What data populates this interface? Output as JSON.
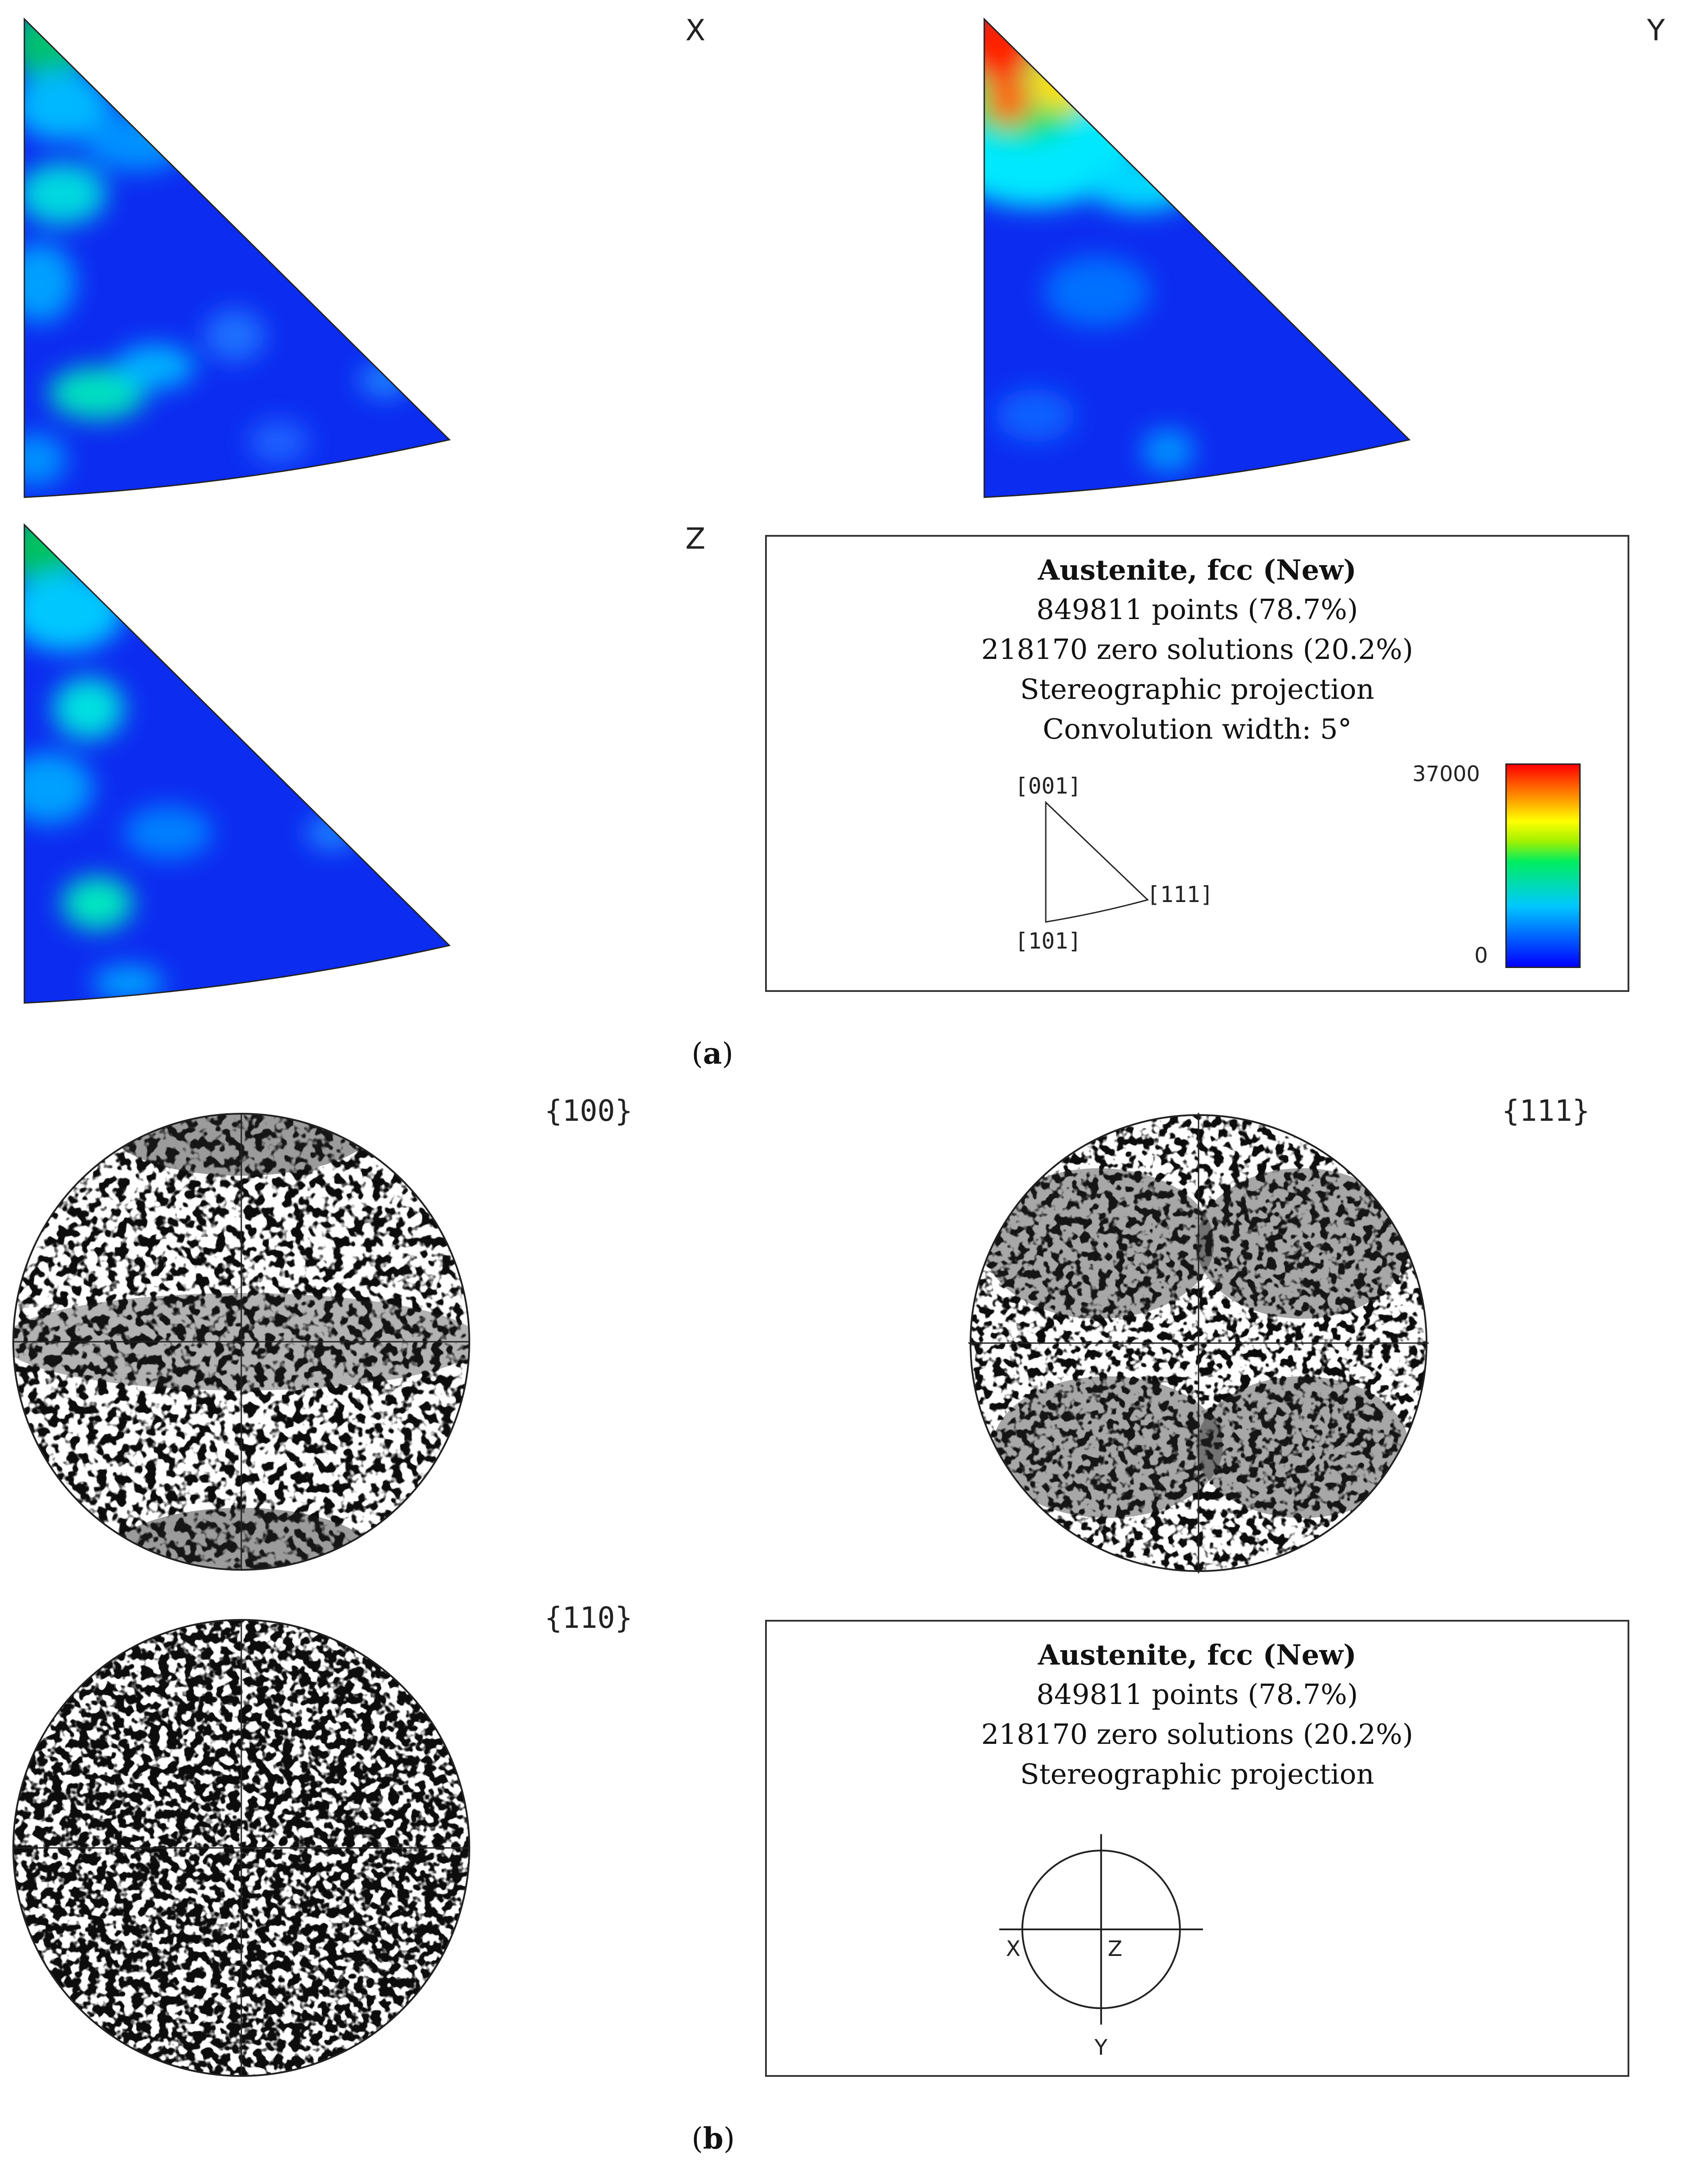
{
  "panel_a": {
    "ipf_maps": [
      {
        "label": "X"
      },
      {
        "label": "Y"
      },
      {
        "label": "Z"
      }
    ],
    "legend": {
      "title": "Austenite, fcc (New)",
      "lines": [
        "849811 points (78.7%)",
        "218170 zero solutions (20.2%)",
        "Stereographic projection",
        "Convolution width: 5°"
      ],
      "triangle_labels": {
        "top": "[001]",
        "bottom": "[101]",
        "right": "[111]"
      },
      "scale_max": "37000",
      "scale_min": "0",
      "colors": [
        "#0000ff",
        "#00e5ff",
        "#00dd00",
        "#ffff00",
        "#ff0000"
      ]
    },
    "caption": "(a)"
  },
  "panel_b": {
    "pole_figures": [
      {
        "label": "{100}"
      },
      {
        "label": "{111}"
      },
      {
        "label": "{110}"
      }
    ],
    "legend": {
      "title": "Austenite, fcc (New)",
      "lines": [
        "849811 points (78.7%)",
        "218170 zero solutions (20.2%)",
        "Stereographic projection"
      ],
      "axes": {
        "x": "X",
        "y": "Y",
        "z": "Z"
      }
    },
    "caption": "(b)"
  }
}
